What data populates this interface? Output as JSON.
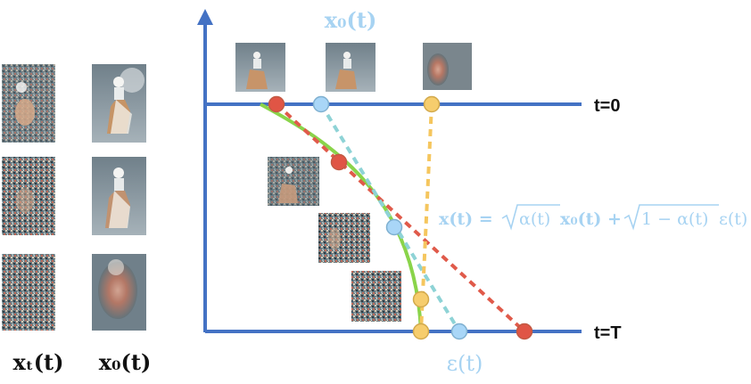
{
  "labels": {
    "x0_top": "x₀(t)",
    "eps_bottom": "ε(t)",
    "t0": "t=0",
    "tT": "t=T",
    "xt_col": "xₜ(t)",
    "x0_col": "x₀(t)",
    "equation": "x(t) = √α(t) x₀(t) + √1 − α(t) ε(t)"
  },
  "equation_parts": {
    "lhs": "x(t) = ",
    "sqrt1": "α(t)",
    "mid": "x₀(t) + ",
    "sqrt2": "1 − α(t)",
    "rhs": "ε(t)"
  },
  "colors": {
    "axis": "#4472c4",
    "green_curve": "#8ad44a",
    "red_dashed": "#e05a4a",
    "blue_dashed": "#8ed3d6",
    "yellow_dashed": "#f5c65e",
    "red_dot": "#e05545",
    "blue_dot": "#a9d6f7",
    "yellow_dot": "#f6cd6d",
    "label_blue": "#a7d3f2",
    "text": "#111111"
  },
  "images": {
    "left_column": "horse-rider-noisy-image",
    "right_column": "horse-rider-denoised-image",
    "curve_thumbnails": "horse-rider-thumbnail"
  }
}
